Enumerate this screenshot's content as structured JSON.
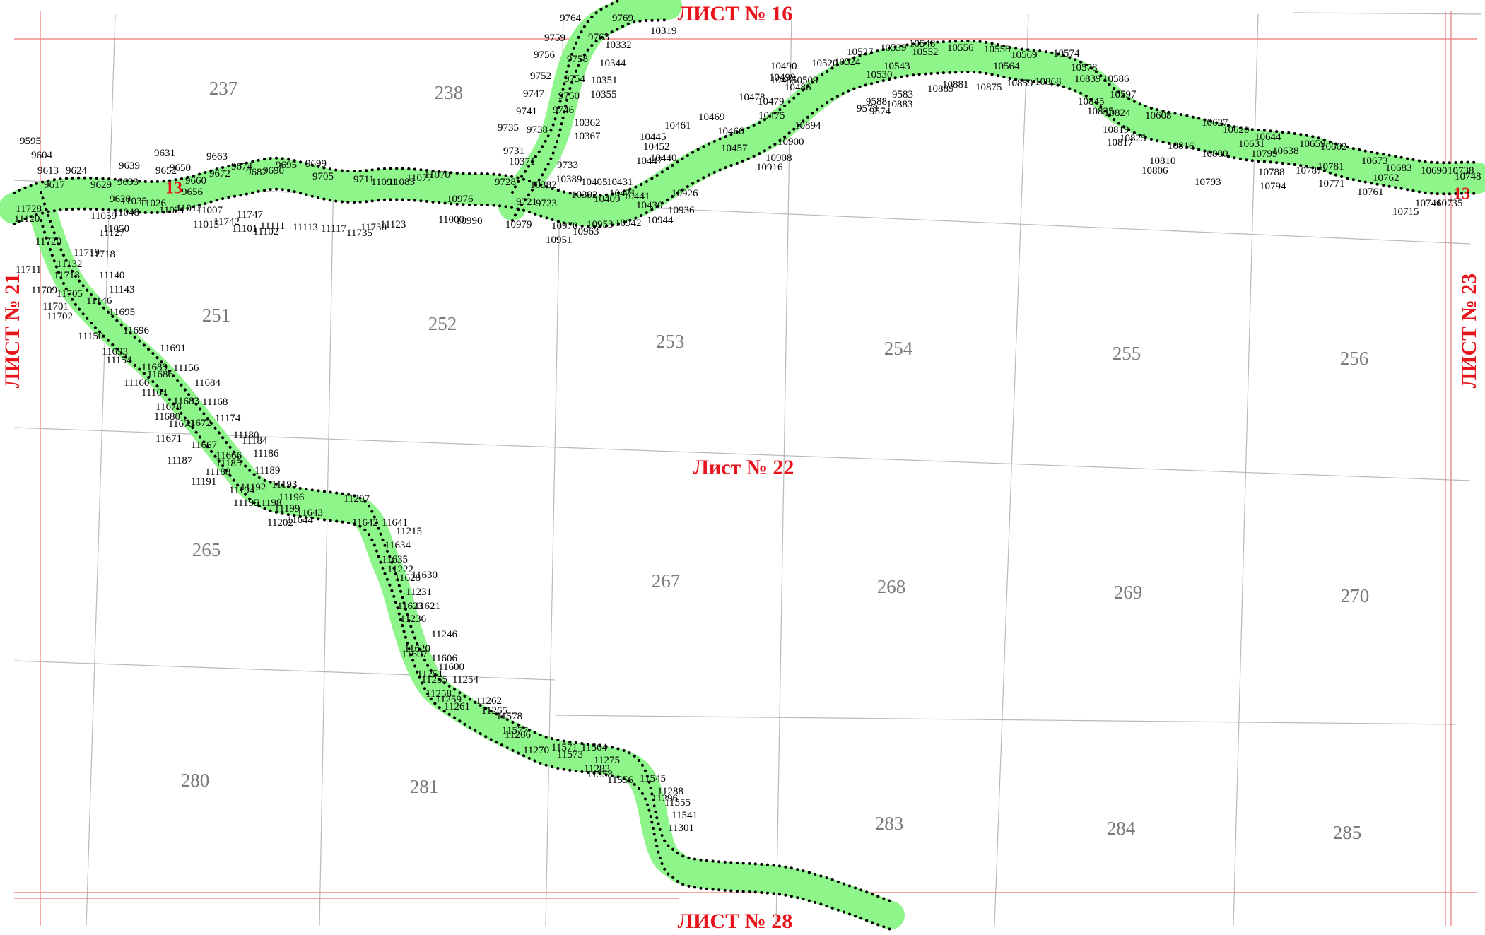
{
  "colors": {
    "strip": "#8ef58a",
    "grid": "#b9b9b9",
    "sheet_boundary": "#f08a8a",
    "sheet_label": "#e8141b",
    "tile_number": "#7a7a7a",
    "point_label": "#000000"
  },
  "sheet_labels": {
    "top": "ЛИСТ № 16",
    "bottom": "ЛИСТ № 28",
    "left": "ЛИСТ № 21",
    "right": "ЛИСТ № 23",
    "center": "Лист № 22"
  },
  "parcel_labels": {
    "left": "13",
    "right": "13"
  },
  "tiles": [
    "237",
    "238",
    "251",
    "252",
    "253",
    "254",
    "255",
    "256",
    "265",
    "267",
    "268",
    "269",
    "270",
    "280",
    "281",
    "283",
    "284",
    "285"
  ],
  "point_labels": [
    "9764",
    "9769",
    "10319",
    "9759",
    "9763",
    "10332",
    "9756",
    "9758",
    "10344",
    "9752",
    "9754",
    "10351",
    "9747",
    "9750",
    "10355",
    "9741",
    "9746",
    "10362",
    "9735",
    "9738",
    "10367",
    "9731",
    "9733",
    "10371",
    "9728",
    "10382",
    "9723",
    "9721",
    "10389",
    "10392",
    "10409",
    "10405",
    "10431",
    "10421",
    "10430",
    "10441",
    "10447",
    "10452",
    "10445",
    "10440",
    "10926",
    "10936",
    "10944",
    "10942",
    "10953",
    "10963",
    "10951",
    "10970",
    "10979",
    "10990",
    "11000",
    "10976",
    "10461",
    "10469",
    "10457",
    "10466",
    "10916",
    "10908",
    "10900",
    "10894",
    "10475",
    "10479",
    "10478",
    "10486",
    "10485",
    "10490",
    "10499",
    "10509",
    "10520",
    "10524",
    "10527",
    "10530",
    "10539",
    "10543",
    "10548",
    "10552",
    "10556",
    "10558",
    "10564",
    "10569",
    "10574",
    "10578",
    "10586",
    "10597",
    "10608",
    "10627",
    "10620",
    "10631",
    "10644",
    "10638",
    "10659",
    "10662",
    "10673",
    "10683",
    "10690",
    "10748",
    "10738",
    "10735",
    "10746",
    "10715",
    "10761",
    "10762",
    "10771",
    "10781",
    "10787",
    "10788",
    "10794",
    "10799",
    "10793",
    "10800",
    "10810",
    "10806",
    "10816",
    "10817",
    "10819",
    "10825",
    "10824",
    "10835",
    "10845",
    "10839",
    "10859",
    "10868",
    "10875",
    "10881",
    "10889",
    "10883",
    "9574",
    "9578",
    "9583",
    "9588",
    "9595",
    "9604",
    "9613",
    "9617",
    "9624",
    "9629",
    "9620",
    "9633",
    "9639",
    "9631",
    "9652",
    "9650",
    "9656",
    "9660",
    "9663",
    "9672",
    "9674",
    "9682",
    "9690",
    "9695",
    "9699",
    "9705",
    "9711",
    "11091",
    "11083",
    "11077",
    "11070",
    "11059",
    "11050",
    "11048",
    "11035",
    "11026",
    "11021",
    "11012",
    "11015",
    "11007",
    "11747",
    "11742",
    "11101",
    "11102",
    "11111",
    "11113",
    "11117",
    "11735",
    "11730",
    "11123",
    "11728",
    "11120",
    "11127",
    "11720",
    "11719",
    "11718",
    "11132",
    "11711",
    "11713",
    "11140",
    "11709",
    "11705",
    "11143",
    "11701",
    "11702",
    "11146",
    "11695",
    "11696",
    "11150",
    "11693",
    "11691",
    "11154",
    "11689",
    "11156",
    "11160",
    "11686",
    "11684",
    "11164",
    "11683",
    "11168",
    "11678",
    "11680",
    "11174",
    "11673",
    "11672",
    "11180",
    "11671",
    "11667",
    "11184",
    "11666",
    "11185",
    "11186",
    "11187",
    "11188",
    "11189",
    "11191",
    "11192",
    "11193",
    "11194",
    "11195",
    "11196",
    "11198",
    "11199",
    "11202",
    "11643",
    "11644",
    "11207",
    "11642",
    "11641",
    "11215",
    "11634",
    "11635",
    "11222",
    "11630",
    "11628",
    "11231",
    "11623",
    "11621",
    "11236",
    "11246",
    "11620",
    "11607",
    "11606",
    "11600",
    "11251",
    "11254",
    "11255",
    "11258",
    "11259",
    "11261",
    "11262",
    "11265",
    "11578",
    "11577",
    "11266",
    "11270",
    "11571",
    "11573",
    "11564",
    "11275",
    "11283",
    "11558",
    "11556",
    "11545",
    "11288",
    "11296",
    "11555",
    "11541",
    "11301"
  ]
}
